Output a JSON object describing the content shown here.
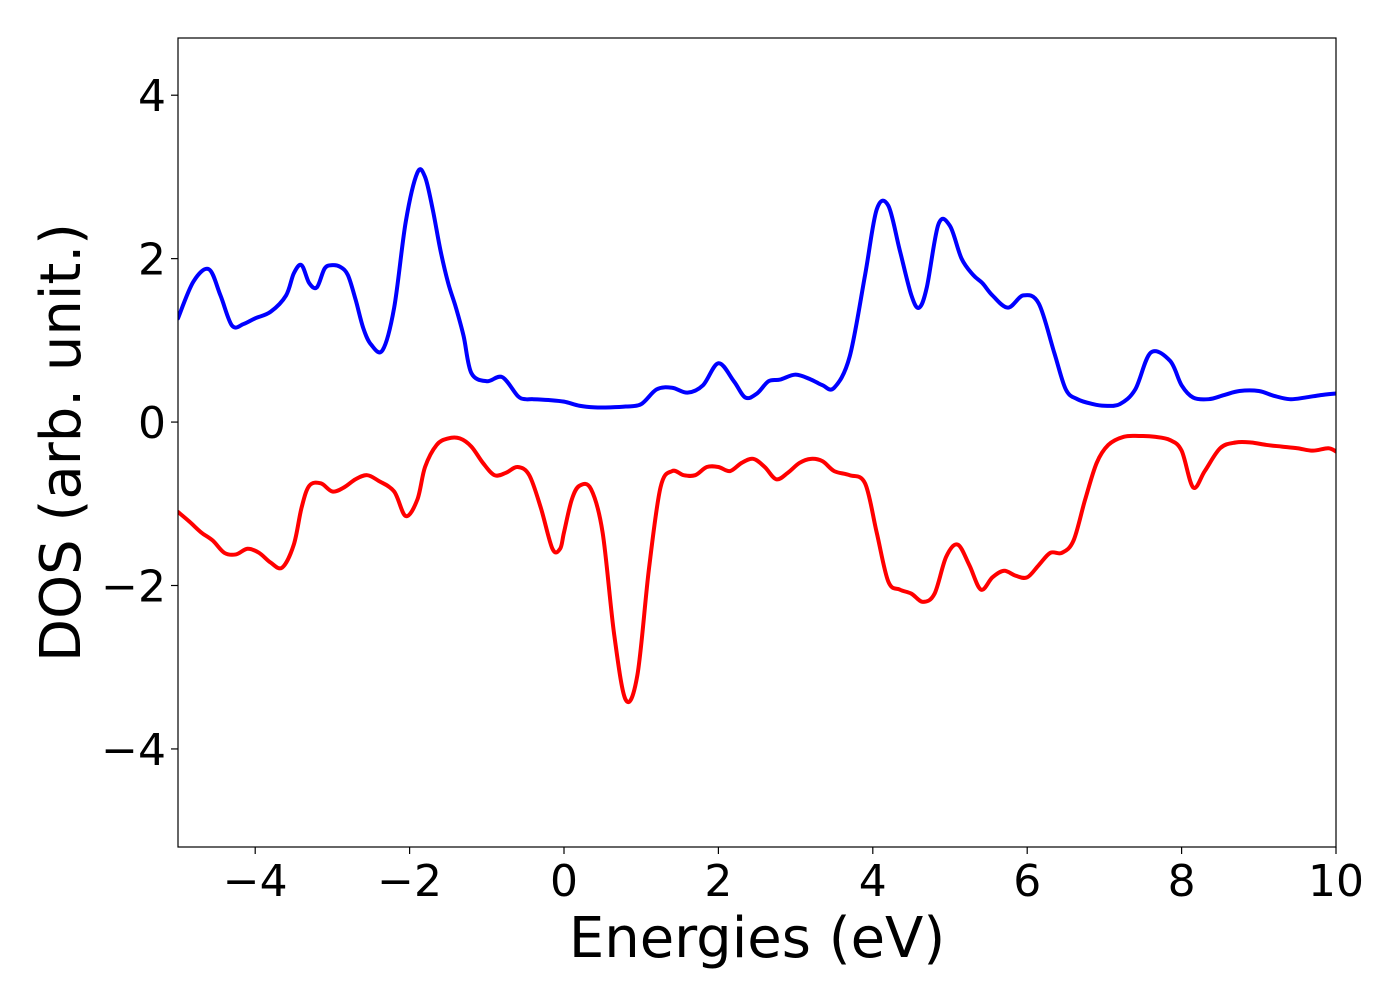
{
  "chart_data": {
    "type": "line",
    "xlabel": "Energies (eV)",
    "ylabel": "DOS (arb. unit.)",
    "xlim": [
      -5,
      10
    ],
    "ylim": [
      -5.2,
      4.7
    ],
    "xticks": [
      -4,
      -2,
      0,
      2,
      4,
      6,
      8,
      10
    ],
    "xtick_labels": [
      "−4",
      "−2",
      "0",
      "2",
      "4",
      "6",
      "8",
      "10"
    ],
    "yticks": [
      -4,
      -2,
      0,
      2,
      4
    ],
    "ytick_labels": [
      "−4",
      "−2",
      "0",
      "2",
      "4"
    ],
    "grid": false,
    "series": [
      {
        "color": "#0000ff",
        "x": [
          -5.0,
          -4.8,
          -4.6,
          -4.45,
          -4.3,
          -4.15,
          -4.0,
          -3.8,
          -3.6,
          -3.5,
          -3.4,
          -3.3,
          -3.2,
          -3.1,
          -3.0,
          -2.9,
          -2.8,
          -2.7,
          -2.6,
          -2.5,
          -2.35,
          -2.2,
          -2.05,
          -1.9,
          -1.8,
          -1.7,
          -1.6,
          -1.5,
          -1.4,
          -1.3,
          -1.2,
          -1.0,
          -0.8,
          -0.6,
          -0.5,
          -0.4,
          -0.2,
          0.0,
          0.2,
          0.4,
          0.6,
          0.8,
          1.0,
          1.2,
          1.4,
          1.6,
          1.8,
          2.0,
          2.2,
          2.35,
          2.5,
          2.65,
          2.8,
          3.0,
          3.2,
          3.35,
          3.5,
          3.7,
          3.9,
          4.05,
          4.2,
          4.35,
          4.5,
          4.6,
          4.7,
          4.85,
          5.0,
          5.15,
          5.3,
          5.42,
          5.55,
          5.75,
          5.95,
          6.15,
          6.35,
          6.5,
          6.65,
          6.85,
          7.0,
          7.2,
          7.4,
          7.6,
          7.85,
          8.0,
          8.15,
          8.35,
          8.55,
          8.75,
          9.0,
          9.2,
          9.4,
          9.6,
          9.8,
          10.0
        ],
        "values": [
          1.27,
          1.72,
          1.87,
          1.55,
          1.18,
          1.2,
          1.27,
          1.35,
          1.55,
          1.82,
          1.92,
          1.7,
          1.65,
          1.88,
          1.92,
          1.9,
          1.8,
          1.5,
          1.15,
          0.95,
          0.88,
          1.4,
          2.45,
          3.05,
          3.0,
          2.6,
          2.1,
          1.7,
          1.4,
          1.05,
          0.6,
          0.5,
          0.55,
          0.32,
          0.28,
          0.28,
          0.27,
          0.25,
          0.2,
          0.18,
          0.18,
          0.19,
          0.22,
          0.4,
          0.42,
          0.36,
          0.45,
          0.72,
          0.5,
          0.3,
          0.35,
          0.5,
          0.52,
          0.58,
          0.52,
          0.45,
          0.42,
          0.8,
          1.8,
          2.6,
          2.65,
          2.1,
          1.55,
          1.4,
          1.65,
          2.42,
          2.4,
          2.0,
          1.8,
          1.7,
          1.55,
          1.4,
          1.55,
          1.45,
          0.85,
          0.4,
          0.28,
          0.22,
          0.2,
          0.22,
          0.4,
          0.85,
          0.75,
          0.45,
          0.3,
          0.28,
          0.33,
          0.38,
          0.38,
          0.32,
          0.28,
          0.3,
          0.33,
          0.35
        ]
      },
      {
        "color": "#ff0000",
        "x": [
          -5.0,
          -4.85,
          -4.7,
          -4.55,
          -4.4,
          -4.25,
          -4.1,
          -3.95,
          -3.8,
          -3.65,
          -3.5,
          -3.4,
          -3.3,
          -3.15,
          -3.0,
          -2.85,
          -2.7,
          -2.55,
          -2.4,
          -2.2,
          -2.05,
          -1.9,
          -1.8,
          -1.65,
          -1.5,
          -1.35,
          -1.2,
          -1.05,
          -0.9,
          -0.75,
          -0.6,
          -0.45,
          -0.3,
          -0.15,
          -0.05,
          0.0,
          0.1,
          0.2,
          0.35,
          0.5,
          0.65,
          0.8,
          0.95,
          1.1,
          1.25,
          1.4,
          1.55,
          1.7,
          1.85,
          2.0,
          2.15,
          2.3,
          2.45,
          2.6,
          2.75,
          2.9,
          3.05,
          3.2,
          3.35,
          3.5,
          3.7,
          3.9,
          4.05,
          4.2,
          4.35,
          4.5,
          4.65,
          4.8,
          4.95,
          5.1,
          5.25,
          5.4,
          5.55,
          5.7,
          5.85,
          6.0,
          6.15,
          6.3,
          6.45,
          6.6,
          6.75,
          6.9,
          7.05,
          7.25,
          7.45,
          7.65,
          7.85,
          8.0,
          8.15,
          8.3,
          8.5,
          8.7,
          8.9,
          9.1,
          9.3,
          9.5,
          9.7,
          9.9,
          10.0
        ],
        "values": [
          -1.1,
          -1.22,
          -1.35,
          -1.45,
          -1.6,
          -1.62,
          -1.55,
          -1.6,
          -1.72,
          -1.78,
          -1.5,
          -1.05,
          -0.78,
          -0.75,
          -0.85,
          -0.8,
          -0.7,
          -0.65,
          -0.72,
          -0.85,
          -1.15,
          -0.95,
          -0.55,
          -0.28,
          -0.2,
          -0.2,
          -0.3,
          -0.5,
          -0.65,
          -0.62,
          -0.55,
          -0.65,
          -1.05,
          -1.55,
          -1.55,
          -1.35,
          -0.95,
          -0.78,
          -0.82,
          -1.35,
          -2.6,
          -3.4,
          -3.1,
          -1.8,
          -0.8,
          -0.6,
          -0.65,
          -0.65,
          -0.55,
          -0.55,
          -0.6,
          -0.5,
          -0.45,
          -0.55,
          -0.7,
          -0.62,
          -0.5,
          -0.45,
          -0.48,
          -0.6,
          -0.65,
          -0.75,
          -1.35,
          -1.95,
          -2.05,
          -2.1,
          -2.2,
          -2.1,
          -1.65,
          -1.5,
          -1.75,
          -2.05,
          -1.9,
          -1.82,
          -1.88,
          -1.9,
          -1.75,
          -1.6,
          -1.6,
          -1.45,
          -0.95,
          -0.5,
          -0.28,
          -0.18,
          -0.17,
          -0.18,
          -0.22,
          -0.35,
          -0.8,
          -0.6,
          -0.32,
          -0.25,
          -0.25,
          -0.28,
          -0.3,
          -0.32,
          -0.35,
          -0.32,
          -0.36
        ]
      }
    ]
  }
}
